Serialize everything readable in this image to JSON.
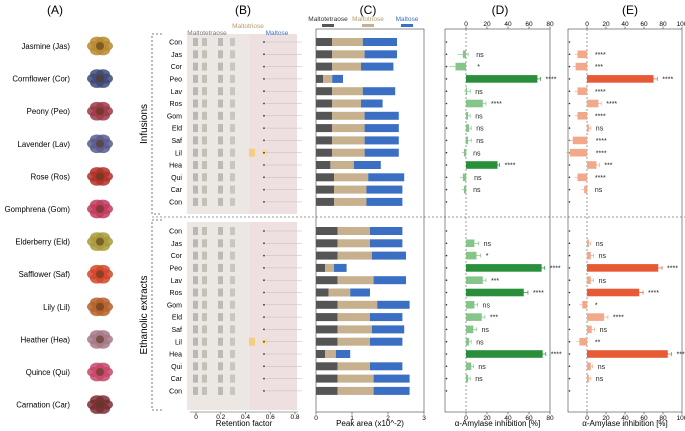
{
  "panels": {
    "A": "(A)",
    "B": "(B)",
    "C": "(C)",
    "D": "(D)",
    "E": "(E)"
  },
  "flowers": [
    {
      "label": "Jasmine (Jas)",
      "color": "#b8892f"
    },
    {
      "label": "Cornflower (Cor)",
      "color": "#3d4a78"
    },
    {
      "label": "Peony (Peo)",
      "color": "#9c3a48"
    },
    {
      "label": "Lavender (Lav)",
      "color": "#5a5a8e"
    },
    {
      "label": "Rose (Ros)",
      "color": "#b03028"
    },
    {
      "label": "Gomphrena (Gom)",
      "color": "#c23a5e"
    },
    {
      "label": "Elderberry (Eld)",
      "color": "#a89a3a"
    },
    {
      "label": "Safflower (Saf)",
      "color": "#d4462a"
    },
    {
      "label": "Lily (Lil)",
      "color": "#b5602a"
    },
    {
      "label": "Heather (Hea)",
      "color": "#a77888"
    },
    {
      "label": "Quince (Qui)",
      "color": "#c8466a"
    },
    {
      "label": "Carnation (Car)",
      "color": "#7a2e34"
    }
  ],
  "groups": [
    "Infusions",
    "Ethanolic extracts"
  ],
  "tlc": {
    "legend": [
      "Maltotetraose",
      "Maltotriose",
      "Maltose"
    ],
    "legend_colors": [
      "#777777",
      "#b8a07e",
      "#3a6fc4"
    ],
    "xlabel": "Retention factor",
    "ticks": [
      "0",
      "0.2",
      "0.4",
      "0.6",
      "0.8"
    ]
  },
  "rows": {
    "infusions": [
      "Con",
      "Jas",
      "Cor",
      "Peo",
      "Lav",
      "Ros",
      "Gom",
      "Eld",
      "Saf",
      "Lil",
      "Hea",
      "Qui",
      "Car",
      "Con"
    ],
    "ethanolic": [
      "Con",
      "Jas",
      "Cor",
      "Peo",
      "Lav",
      "Ros",
      "Gom",
      "Eld",
      "Saf",
      "Lil",
      "Hea",
      "Qui",
      "Car",
      "Con"
    ]
  },
  "chart_data": [
    {
      "panel": "C",
      "type": "bar",
      "stacked": true,
      "title": "",
      "xlabel": "Peak area (x10^-2)",
      "xlim": [
        0,
        3
      ],
      "ticks": [
        "0",
        "1",
        "2",
        "3"
      ],
      "legend": [
        "Maltotetraose",
        "Maltotriose",
        "Maltose"
      ],
      "colors": [
        "#555555",
        "#c6b08e",
        "#3a6fc4"
      ],
      "infusions": {
        "categories": [
          "Con",
          "Jas",
          "Cor",
          "Peo",
          "Lav",
          "Ros",
          "Gom",
          "Eld",
          "Saf",
          "Lil",
          "Hea",
          "Qui",
          "Car",
          "Con"
        ],
        "series": [
          {
            "name": "Maltotetraose",
            "values": [
              0.45,
              0.45,
              0.45,
              0.2,
              0.45,
              0.45,
              0.45,
              0.45,
              0.45,
              0.45,
              0.4,
              0.5,
              0.5,
              0.5
            ]
          },
          {
            "name": "Maltotriose",
            "values": [
              0.85,
              0.9,
              0.8,
              0.25,
              0.85,
              0.8,
              0.9,
              0.9,
              0.9,
              0.9,
              0.65,
              0.95,
              0.9,
              0.9
            ]
          },
          {
            "name": "Maltose",
            "values": [
              0.95,
              0.9,
              0.9,
              0.3,
              0.9,
              0.6,
              0.95,
              0.95,
              0.95,
              0.95,
              0.75,
              1.0,
              1.0,
              1.0
            ]
          }
        ]
      },
      "ethanolic": {
        "categories": [
          "Con",
          "Jas",
          "Cor",
          "Peo",
          "Lav",
          "Ros",
          "Gom",
          "Eld",
          "Saf",
          "Lil",
          "Hea",
          "Qui",
          "Car",
          "Con"
        ],
        "series": [
          {
            "name": "Maltotetraose",
            "values": [
              0.6,
              0.6,
              0.6,
              0.25,
              0.6,
              0.35,
              0.6,
              0.6,
              0.6,
              0.6,
              0.25,
              0.6,
              0.6,
              0.6
            ]
          },
          {
            "name": "Maltotriose",
            "values": [
              0.9,
              0.9,
              0.95,
              0.25,
              1.0,
              0.6,
              1.1,
              0.9,
              0.95,
              0.9,
              0.3,
              0.9,
              1.0,
              1.0
            ]
          },
          {
            "name": "Maltose",
            "values": [
              0.9,
              0.9,
              0.95,
              0.35,
              0.9,
              0.55,
              0.9,
              0.9,
              0.9,
              0.9,
              0.4,
              0.9,
              1.0,
              1.0
            ]
          }
        ]
      }
    },
    {
      "panel": "D",
      "type": "bar",
      "title": "",
      "xlabel": "α-Amylase inhibition [%]",
      "xlim": [
        -20,
        80
      ],
      "ticks": [
        "0",
        "20",
        "40",
        "60",
        "80"
      ],
      "tick_values": [
        0,
        20,
        40,
        60,
        80
      ],
      "colors": {
        "infusions_strong": "#2a8f3a",
        "infusions_weak": "#86c58a",
        "ethanolic_strong": "#2a8f3a",
        "ethanolic_weak": "#86c58a"
      },
      "infusions": {
        "categories": [
          "Con",
          "Jas",
          "Cor",
          "Peo",
          "Lav",
          "Ros",
          "Gom",
          "Eld",
          "Saf",
          "Lil",
          "Hea",
          "Qui",
          "Car",
          "Con"
        ],
        "values": [
          0,
          -3,
          -10,
          68,
          1,
          16,
          2,
          3,
          2,
          -2,
          30,
          -3,
          -2,
          0
        ],
        "errors": [
          0,
          5,
          6,
          3,
          3,
          3,
          2,
          2,
          3,
          2,
          2,
          3,
          2,
          0
        ],
        "significance": [
          "",
          "ns",
          "*",
          "****",
          "ns",
          "****",
          "ns",
          "ns",
          "ns",
          "ns",
          "****",
          "ns",
          "ns",
          ""
        ]
      },
      "ethanolic": {
        "categories": [
          "Con",
          "Jas",
          "Cor",
          "Peo",
          "Lav",
          "Ros",
          "Gom",
          "Eld",
          "Saf",
          "Lil",
          "Hea",
          "Qui",
          "Car",
          "Con"
        ],
        "values": [
          0,
          8,
          10,
          72,
          16,
          55,
          8,
          15,
          7,
          3,
          73,
          5,
          2,
          0
        ],
        "errors": [
          0,
          4,
          4,
          3,
          3,
          4,
          3,
          3,
          3,
          2,
          3,
          2,
          2,
          0
        ],
        "significance": [
          "",
          "ns",
          "*",
          "****",
          "***",
          "****",
          "ns",
          "***",
          "ns",
          "ns",
          "****",
          "ns",
          "ns",
          ""
        ]
      }
    },
    {
      "panel": "E",
      "type": "bar",
      "title": "",
      "xlabel": "α-Amylase inhibition [%]",
      "xlim": [
        -20,
        100
      ],
      "ticks": [
        "0",
        "20",
        "40",
        "60",
        "80",
        "100"
      ],
      "tick_values": [
        0,
        20,
        40,
        60,
        80,
        100
      ],
      "colors": {
        "strong": "#e85a35",
        "weak": "#f2a98a"
      },
      "infusions": {
        "categories": [
          "Con",
          "Jas",
          "Cor",
          "Peo",
          "Lav",
          "Ros",
          "Gom",
          "Eld",
          "Saf",
          "Lil",
          "Hea",
          "Qui",
          "Car",
          "Con"
        ],
        "values": [
          0,
          -10,
          -12,
          70,
          -10,
          12,
          -10,
          2,
          -15,
          -18,
          10,
          -10,
          -3,
          0
        ],
        "errors": [
          0,
          3,
          3,
          4,
          3,
          3,
          3,
          2,
          4,
          4,
          3,
          3,
          3,
          0
        ],
        "significance": [
          "",
          "****",
          "***",
          "****",
          "****",
          "****",
          "****",
          "ns",
          "****",
          "****",
          "***",
          "****",
          "ns",
          ""
        ]
      },
      "ethanolic": {
        "categories": [
          "Con",
          "Jas",
          "Cor",
          "Peo",
          "Lav",
          "Ros",
          "Gom",
          "Eld",
          "Saf",
          "Lil",
          "Hea",
          "Qui",
          "Car",
          "Con"
        ],
        "values": [
          0,
          2,
          4,
          75,
          4,
          55,
          -5,
          18,
          5,
          -8,
          85,
          4,
          2,
          0
        ],
        "errors": [
          0,
          2,
          3,
          4,
          3,
          4,
          3,
          4,
          3,
          3,
          4,
          2,
          2,
          0
        ],
        "significance": [
          "",
          "ns",
          "ns",
          "****",
          "ns",
          "****",
          "*",
          "****",
          "ns",
          "**",
          "****",
          "ns",
          "ns",
          ""
        ]
      }
    }
  ]
}
